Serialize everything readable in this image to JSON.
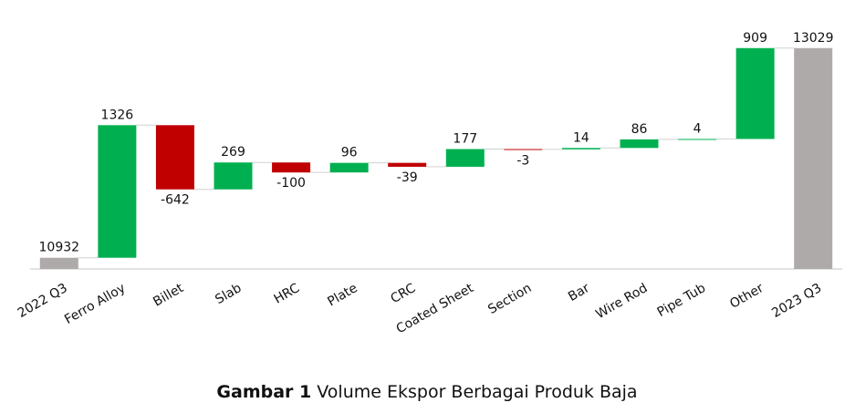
{
  "chart_data": {
    "type": "waterfall",
    "categories": [
      "2022 Q3",
      "Ferro Alloy",
      "Billet",
      "Slab",
      "HRC",
      "Plate",
      "CRC",
      "Coated Sheet",
      "Section",
      "Bar",
      "Wire Rod",
      "Pipe Tub",
      "Other",
      "2023 Q3"
    ],
    "values": [
      10932,
      1326,
      -642,
      269,
      -100,
      96,
      -39,
      177,
      -3,
      14,
      86,
      4,
      909,
      13029
    ],
    "ylim": [
      10820,
      13200
    ],
    "increase_color": "#00b050",
    "decrease_color": "#c00000",
    "total_color": "#aeaaaa"
  },
  "caption": {
    "label": "Gambar 1",
    "text": "Volume Ekspor Berbagai Produk Baja"
  }
}
